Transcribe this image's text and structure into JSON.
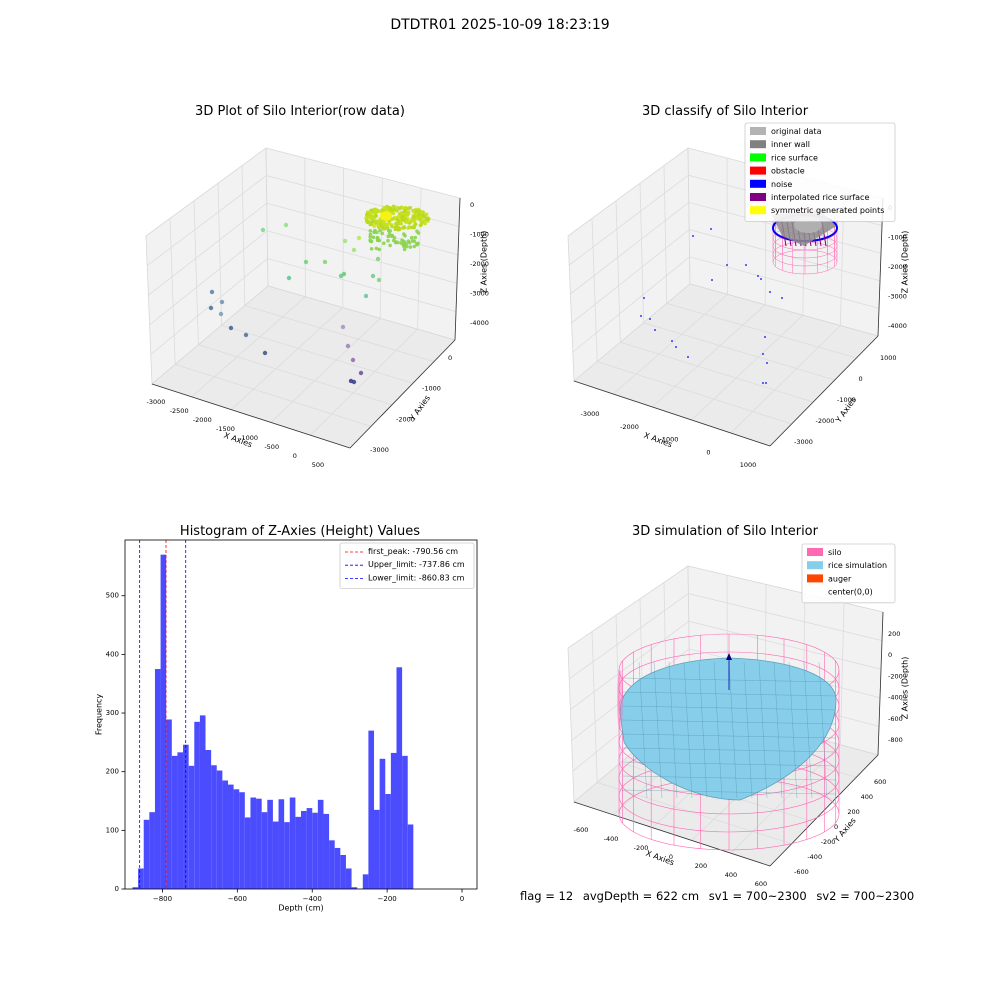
{
  "suptitle": "DTDTR01 2025-10-09 18:23:19",
  "chart_data": [
    {
      "type": "scatter3d",
      "title": "3D Plot of Silo Interior(row data)",
      "xlabel": "X Axies",
      "ylabel": "Y Axies",
      "zlabel": "Z Axies (Depth)",
      "x_ticks": [
        "-3000",
        "-2500",
        "-2000",
        "-1500",
        "-1000",
        "-500",
        "0",
        "500"
      ],
      "y_ticks": [
        "-3000",
        "-2000",
        "-1000",
        "0"
      ],
      "z_ticks": [
        "0",
        "-1000",
        "-2000",
        "-3000",
        "-4000"
      ]
    },
    {
      "type": "scatter3d",
      "title": "3D classify of Silo Interior",
      "xlabel": "X Axies",
      "ylabel": "Y Axies",
      "zlabel": "Z Axies (Depth)",
      "x_ticks": [
        "-3000",
        "-2000",
        "-1000",
        "0",
        "1000"
      ],
      "y_ticks": [
        "-3000",
        "-2000",
        "-1000",
        "0",
        "1000"
      ],
      "z_ticks": [
        "0",
        "-1000",
        "-2000",
        "-3000",
        "-4000"
      ],
      "legend_position": "top-right",
      "legend": [
        {
          "label": "original data",
          "color": "#b3b3b3"
        },
        {
          "label": "inner wall",
          "color": "#808080"
        },
        {
          "label": "rice surface",
          "color": "#00ff00"
        },
        {
          "label": "obstacle",
          "color": "#ff0000"
        },
        {
          "label": "noise",
          "color": "#0000ff"
        },
        {
          "label": "interpolated rice surface",
          "color": "#800080"
        },
        {
          "label": "symmetric generated points",
          "color": "#ffff00"
        }
      ]
    },
    {
      "type": "bar",
      "title": "Histogram of Z-Axies (Height) Values",
      "xlabel": "Depth (cm)",
      "ylabel": "Frequency",
      "xlim": [
        -900,
        40
      ],
      "ylim": [
        0,
        595
      ],
      "x_ticks": [
        -800,
        -600,
        -400,
        -200,
        0
      ],
      "y_ticks": [
        0,
        100,
        200,
        300,
        400,
        500
      ],
      "bar_color": "#4c4cff",
      "bins": [
        [
          -880,
          -865,
          3
        ],
        [
          -865,
          -850,
          35
        ],
        [
          -850,
          -835,
          118
        ],
        [
          -835,
          -820,
          131
        ],
        [
          -820,
          -805,
          375
        ],
        [
          -805,
          -790,
          570
        ],
        [
          -790,
          -775,
          289
        ],
        [
          -775,
          -760,
          227
        ],
        [
          -760,
          -745,
          233
        ],
        [
          -745,
          -730,
          246
        ],
        [
          -730,
          -715,
          210
        ],
        [
          -715,
          -700,
          285
        ],
        [
          -700,
          -685,
          296
        ],
        [
          -685,
          -670,
          237
        ],
        [
          -670,
          -655,
          211
        ],
        [
          -655,
          -640,
          202
        ],
        [
          -640,
          -625,
          185
        ],
        [
          -625,
          -610,
          178
        ],
        [
          -610,
          -595,
          170
        ],
        [
          -595,
          -580,
          165
        ],
        [
          -580,
          -565,
          122
        ],
        [
          -565,
          -550,
          156
        ],
        [
          -550,
          -535,
          154
        ],
        [
          -535,
          -520,
          131
        ],
        [
          -520,
          -505,
          152
        ],
        [
          -505,
          -490,
          115
        ],
        [
          -490,
          -475,
          153
        ],
        [
          -475,
          -460,
          114
        ],
        [
          -460,
          -445,
          156
        ],
        [
          -445,
          -430,
          123
        ],
        [
          -430,
          -415,
          133
        ],
        [
          -415,
          -400,
          138
        ],
        [
          -400,
          -385,
          130
        ],
        [
          -385,
          -370,
          152
        ],
        [
          -370,
          -355,
          128
        ],
        [
          -355,
          -340,
          83
        ],
        [
          -340,
          -325,
          70
        ],
        [
          -325,
          -310,
          58
        ],
        [
          -310,
          -295,
          35
        ],
        [
          -295,
          -280,
          3
        ],
        [
          -265,
          -250,
          25
        ],
        [
          -250,
          -235,
          270
        ],
        [
          -235,
          -220,
          135
        ],
        [
          -220,
          -205,
          222
        ],
        [
          -205,
          -190,
          162
        ],
        [
          -190,
          -175,
          232
        ],
        [
          -175,
          -160,
          378
        ],
        [
          -160,
          -145,
          227
        ],
        [
          -145,
          -130,
          110
        ]
      ],
      "vlines": [
        {
          "x": -790.56,
          "color": "#ff0000",
          "label": "first_peak: -790.56 cm"
        },
        {
          "x": -737.86,
          "color": "#0000ff",
          "label": "Upper_limit: -737.86 cm"
        },
        {
          "x": -860.83,
          "color": "#0000ff",
          "label": "Lower_limit: -860.83 cm"
        }
      ],
      "legend_position": "top-right"
    },
    {
      "type": "surface3d",
      "title": "3D simulation of Silo Interior",
      "xlabel": "X Axies",
      "ylabel": "Y Axies",
      "zlabel": "Z Axies (Depth)",
      "x_ticks": [
        "-600",
        "-400",
        "-200",
        "0",
        "200",
        "400",
        "600"
      ],
      "y_ticks": [
        "-600",
        "-400",
        "-200",
        "0",
        "200",
        "400",
        "600"
      ],
      "z_ticks": [
        "200",
        "0",
        "-200",
        "-400",
        "-600",
        "-800"
      ],
      "legend_position": "top-right",
      "legend": [
        {
          "label": "silo",
          "color": "#ff69b4"
        },
        {
          "label": "rice simulation",
          "color": "#87ceeb"
        },
        {
          "label": "auger",
          "color": "#ff4500"
        },
        {
          "label": "center(0,0)",
          "color": "#ffffff"
        }
      ]
    }
  ],
  "status": {
    "flag": "flag = 12",
    "avg_depth": "avgDepth = 622 cm",
    "sv1": "sv1 = 700~2300",
    "sv2": "sv2 = 700~2300"
  }
}
